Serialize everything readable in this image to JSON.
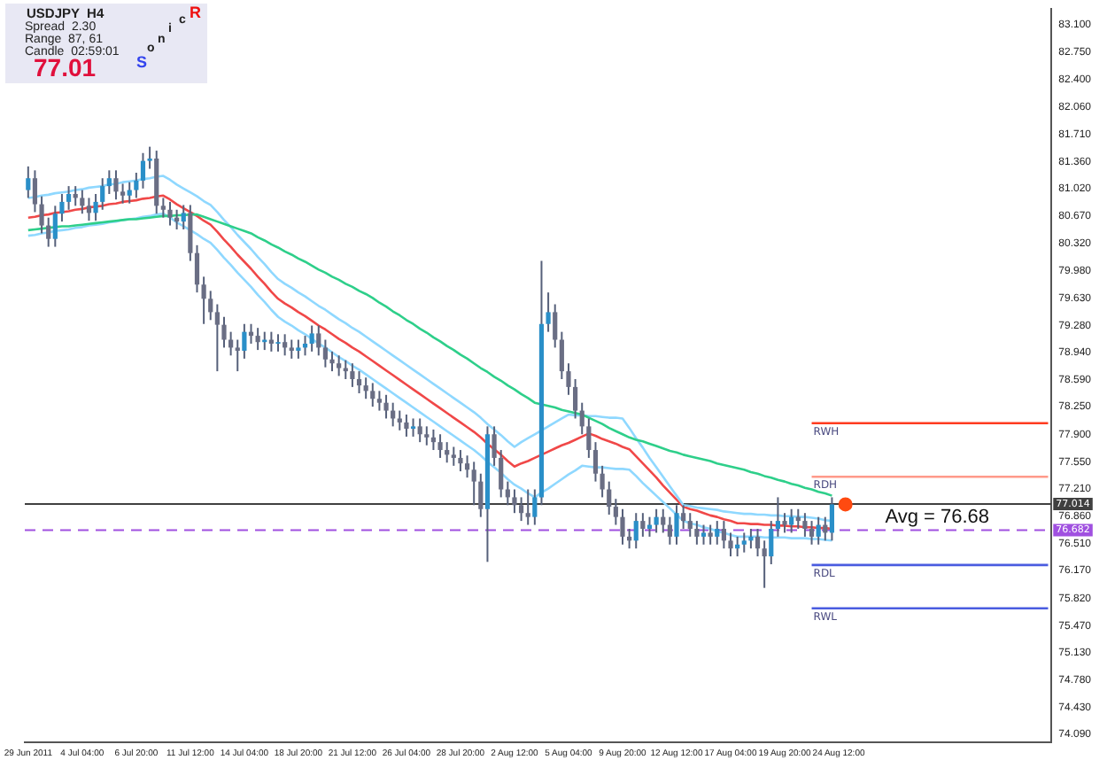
{
  "chart_data": {
    "type": "candlestick",
    "title": "USDJPY  H4",
    "annotations": [
      "Spread  2.30",
      "Range  87, 61",
      "Candle  02:59:01",
      "77.01",
      "Sonic R",
      {
        "text": "Avg = 76.68",
        "y": 76.68
      }
    ],
    "color": "#56607a",
    "colors": [
      "#2a8fc8",
      "#6a6e84",
      "#6a6e84",
      "#6a6e84",
      "#2a8fc8",
      "#2a8fc8",
      "#2a8fc8",
      "#6a6e84",
      "#6a6e84",
      "#6a6e84",
      "#2a8fc8",
      "#2a8fc8",
      "#2a8fc8",
      "#6a6e84",
      "#6a6e84",
      "#2a8fc8",
      "#2a8fc8",
      "#2a8fc8",
      "#2a8fc8",
      "#6a6e84",
      "#6a6e84",
      "#6a6e84",
      "#6a6e84",
      "#2a8fc8",
      "#6a6e84",
      "#6a6e84",
      "#6a6e84",
      "#6a6e84",
      "#6a6e84",
      "#6a6e84",
      "#6a6e84",
      "#6a6e84",
      "#2a8fc8",
      "#6a6e84",
      "#6a6e84",
      "#2a8fc8",
      "#6a6e84",
      "#2a8fc8",
      "#6a6e84",
      "#6a6e84",
      "#2a8fc8",
      "#2a8fc8",
      "#2a8fc8",
      "#6a6e84",
      "#6a6e84",
      "#6a6e84",
      "#6a6e84",
      "#6a6e84",
      "#6a6e84",
      "#6a6e84",
      "#6a6e84",
      "#6a6e84",
      "#6a6e84",
      "#6a6e84",
      "#6a6e84",
      "#6a6e84",
      "#6a6e84",
      "#2a8fc8",
      "#6a6e84",
      "#6a6e84",
      "#6a6e84",
      "#6a6e84",
      "#6a6e84",
      "#6a6e84",
      "#6a6e84",
      "#6a6e84",
      "#6a6e84",
      "#6a6e84",
      "#2a8fc8",
      "#6a6e84",
      "#6a6e84",
      "#6a6e84",
      "#6a6e84",
      "#6a6e84",
      "#6a6e84",
      "#2a8fc8",
      "#2a8fc8",
      "#2a8fc8",
      "#6a6e84",
      "#6a6e84",
      "#6a6e84",
      "#6a6e84",
      "#6a6e84",
      "#6a6e84",
      "#6a6e84",
      "#6a6e84",
      "#6a6e84",
      "#6a6e84",
      "#6a6e84",
      "#6a6e84",
      "#2a8fc8",
      "#6a6e84",
      "#2a8fc8",
      "#2a8fc8",
      "#6a6e84",
      "#6a6e84",
      "#2a8fc8",
      "#6a6e84",
      "#6a6e84",
      "#6a6e84",
      "#2a8fc8",
      "#6a6e84",
      "#2a8fc8",
      "#6a6e84",
      "#6a6e84",
      "#2a8fc8",
      "#2a8fc8",
      "#2a8fc8",
      "#6a6e84",
      "#6a6e84",
      "#2a8fc8",
      "#2a8fc8",
      "#6a6e84",
      "#2a8fc8",
      "#6a6e84",
      "#6a6e84",
      "#6a6e84",
      "#2a8fc8",
      "#6a6e84",
      "#2a8fc8",
      null,
      null,
      null,
      null,
      null,
      null,
      null,
      null,
      null,
      null,
      null,
      null,
      null,
      null,
      null,
      null,
      null,
      null,
      null,
      null,
      null,
      null,
      null,
      null,
      null,
      null,
      null,
      null,
      null,
      null,
      null,
      null
    ],
    "categories": [
      "29 Jun 2011",
      null,
      null,
      null,
      null,
      null,
      null,
      null,
      "4 Jul 04:00",
      null,
      null,
      null,
      null,
      null,
      null,
      null,
      "6 Jul 20:00",
      null,
      null,
      null,
      null,
      null,
      null,
      null,
      "11 Jul 12:00",
      null,
      null,
      null,
      null,
      null,
      null,
      null,
      "14 Jul 04:00",
      null,
      null,
      null,
      null,
      null,
      null,
      null,
      "18 Jul 20:00",
      null,
      null,
      null,
      null,
      null,
      null,
      null,
      "21 Jul 12:00",
      null,
      null,
      null,
      null,
      null,
      null,
      null,
      "26 Jul 04:00",
      null,
      null,
      null,
      null,
      null,
      null,
      null,
      "28 Jul 20:00",
      null,
      null,
      null,
      null,
      null,
      null,
      null,
      "2 Aug 12:00",
      null,
      null,
      null,
      null,
      null,
      null,
      null,
      "5 Aug 04:00",
      null,
      null,
      null,
      null,
      null,
      null,
      null,
      "9 Aug 20:00",
      null,
      null,
      null,
      null,
      null,
      null,
      null,
      "12 Aug 12:00",
      null,
      null,
      null,
      null,
      null,
      null,
      null,
      "17 Aug 04:00",
      null,
      null,
      null,
      null,
      null,
      null,
      null,
      "19 Aug 20:00",
      null,
      null,
      null,
      null,
      null,
      null,
      null,
      "24 Aug 12:00",
      null,
      null,
      null,
      null,
      null,
      null,
      null,
      null,
      null,
      null,
      null,
      null,
      null,
      null,
      null,
      null,
      null,
      null,
      null,
      null,
      null,
      null,
      null,
      null,
      null,
      null,
      null,
      null,
      null,
      null,
      null
    ],
    "ohlc": [
      [
        81.0,
        81.3,
        80.9,
        81.15
      ],
      [
        81.15,
        81.25,
        80.72,
        80.82
      ],
      [
        80.82,
        80.92,
        80.45,
        80.55
      ],
      [
        80.55,
        80.65,
        80.28,
        80.38
      ],
      [
        80.38,
        80.8,
        80.28,
        80.7
      ],
      [
        80.7,
        80.95,
        80.6,
        80.85
      ],
      [
        80.85,
        81.05,
        80.75,
        80.95
      ],
      [
        80.95,
        81.05,
        80.8,
        80.9
      ],
      [
        80.9,
        81.0,
        80.7,
        80.8
      ],
      [
        80.8,
        80.9,
        80.61,
        80.71
      ],
      [
        80.71,
        80.95,
        80.61,
        80.85
      ],
      [
        80.85,
        81.15,
        80.75,
        81.05
      ],
      [
        81.05,
        81.25,
        80.95,
        81.15
      ],
      [
        81.15,
        81.25,
        80.88,
        80.98
      ],
      [
        80.98,
        81.08,
        80.83,
        80.93
      ],
      [
        80.93,
        81.1,
        80.83,
        81.0
      ],
      [
        81.0,
        81.22,
        80.9,
        81.12
      ],
      [
        81.12,
        81.47,
        81.02,
        81.37
      ],
      [
        81.37,
        81.55,
        81.27,
        81.4
      ],
      [
        81.4,
        81.5,
        80.7,
        80.8
      ],
      [
        80.8,
        80.9,
        80.65,
        80.75
      ],
      [
        80.75,
        80.85,
        80.55,
        80.65
      ],
      [
        80.65,
        80.75,
        80.5,
        80.6
      ],
      [
        80.6,
        80.81,
        80.5,
        80.71
      ],
      [
        80.71,
        80.81,
        80.1,
        80.2
      ],
      [
        80.2,
        80.3,
        79.7,
        79.8
      ],
      [
        79.8,
        79.9,
        79.3,
        79.62
      ],
      [
        79.62,
        79.72,
        79.35,
        79.45
      ],
      [
        79.45,
        79.55,
        78.7,
        79.29
      ],
      [
        79.29,
        79.39,
        79.0,
        79.1
      ],
      [
        79.1,
        79.2,
        78.9,
        79.0
      ],
      [
        79.0,
        79.1,
        78.7,
        78.96
      ],
      [
        78.96,
        79.3,
        78.86,
        79.2
      ],
      [
        79.2,
        79.3,
        79.05,
        79.15
      ],
      [
        79.15,
        79.25,
        78.97,
        79.07
      ],
      [
        79.07,
        79.2,
        78.97,
        79.1
      ],
      [
        79.1,
        79.2,
        78.95,
        79.05
      ],
      [
        79.05,
        79.17,
        78.95,
        79.07
      ],
      [
        79.07,
        79.17,
        78.9,
        79.0
      ],
      [
        79.0,
        79.1,
        78.86,
        78.96
      ],
      [
        78.96,
        79.1,
        78.86,
        79.0
      ],
      [
        79.0,
        79.15,
        78.9,
        79.05
      ],
      [
        79.05,
        79.28,
        78.95,
        79.18
      ],
      [
        79.18,
        79.28,
        78.9,
        79.0
      ],
      [
        79.0,
        79.1,
        78.75,
        78.85
      ],
      [
        78.85,
        78.95,
        78.7,
        78.8
      ],
      [
        78.8,
        78.9,
        78.64,
        78.74
      ],
      [
        78.74,
        78.84,
        78.6,
        78.7
      ],
      [
        78.7,
        78.8,
        78.5,
        78.6
      ],
      [
        78.6,
        78.7,
        78.42,
        78.52
      ],
      [
        78.52,
        78.62,
        78.35,
        78.45
      ],
      [
        78.45,
        78.55,
        78.25,
        78.35
      ],
      [
        78.35,
        78.45,
        78.2,
        78.3
      ],
      [
        78.3,
        78.4,
        78.1,
        78.2
      ],
      [
        78.2,
        78.3,
        78.0,
        78.1
      ],
      [
        78.1,
        78.2,
        77.95,
        78.05
      ],
      [
        78.05,
        78.15,
        77.87,
        77.97
      ],
      [
        77.97,
        78.1,
        77.87,
        78.0
      ],
      [
        78.0,
        78.1,
        77.8,
        77.9
      ],
      [
        77.9,
        78.0,
        77.76,
        77.86
      ],
      [
        77.86,
        77.96,
        77.7,
        77.8
      ],
      [
        77.8,
        77.9,
        77.6,
        77.7
      ],
      [
        77.7,
        77.8,
        77.54,
        77.64
      ],
      [
        77.64,
        77.74,
        77.5,
        77.6
      ],
      [
        77.6,
        77.7,
        77.43,
        77.53
      ],
      [
        77.53,
        77.63,
        77.35,
        77.45
      ],
      [
        77.45,
        77.55,
        77.0,
        77.3
      ],
      [
        77.3,
        77.4,
        76.85,
        76.95
      ],
      [
        76.95,
        78.0,
        76.28,
        77.9
      ],
      [
        77.9,
        78.0,
        77.5,
        77.6
      ],
      [
        77.6,
        77.7,
        77.1,
        77.2
      ],
      [
        77.2,
        77.3,
        77.0,
        77.1
      ],
      [
        77.1,
        77.2,
        76.9,
        77.0
      ],
      [
        77.0,
        77.1,
        76.8,
        76.9
      ],
      [
        76.9,
        77.2,
        76.75,
        76.85
      ],
      [
        76.85,
        77.2,
        76.75,
        77.1
      ],
      [
        77.1,
        80.1,
        77.0,
        79.3
      ],
      [
        79.3,
        79.7,
        79.2,
        79.45
      ],
      [
        79.45,
        79.55,
        79.0,
        79.1
      ],
      [
        79.1,
        79.2,
        78.6,
        78.7
      ],
      [
        78.7,
        78.8,
        78.4,
        78.5
      ],
      [
        78.5,
        78.6,
        78.1,
        78.2
      ],
      [
        78.2,
        78.3,
        77.9,
        78.0
      ],
      [
        78.0,
        78.1,
        77.6,
        77.7
      ],
      [
        77.7,
        77.8,
        77.3,
        77.4
      ],
      [
        77.4,
        77.5,
        77.1,
        77.2
      ],
      [
        77.2,
        77.3,
        76.88,
        76.98
      ],
      [
        76.98,
        77.08,
        76.75,
        76.85
      ],
      [
        76.85,
        76.95,
        76.5,
        76.6
      ],
      [
        76.6,
        76.7,
        76.45,
        76.55
      ],
      [
        76.55,
        76.9,
        76.45,
        76.8
      ],
      [
        76.8,
        76.9,
        76.6,
        76.7
      ],
      [
        76.7,
        76.85,
        76.6,
        76.75
      ],
      [
        76.75,
        76.95,
        76.65,
        76.85
      ],
      [
        76.85,
        76.95,
        76.65,
        76.75
      ],
      [
        76.75,
        76.85,
        76.5,
        76.6
      ],
      [
        76.6,
        77.0,
        76.5,
        76.9
      ],
      [
        76.9,
        77.0,
        76.7,
        76.8
      ],
      [
        76.8,
        76.9,
        76.6,
        76.7
      ],
      [
        76.7,
        76.8,
        76.5,
        76.6
      ],
      [
        76.6,
        76.75,
        76.5,
        76.65
      ],
      [
        76.65,
        76.75,
        76.5,
        76.6
      ],
      [
        76.6,
        76.8,
        76.5,
        76.7
      ],
      [
        76.7,
        76.8,
        76.45,
        76.55
      ],
      [
        76.55,
        76.65,
        76.35,
        76.45
      ],
      [
        76.45,
        76.6,
        76.35,
        76.5
      ],
      [
        76.5,
        76.65,
        76.4,
        76.55
      ],
      [
        76.55,
        76.7,
        76.45,
        76.6
      ],
      [
        76.6,
        76.7,
        76.35,
        76.45
      ],
      [
        76.45,
        76.55,
        75.95,
        76.35
      ],
      [
        76.35,
        76.8,
        76.25,
        76.7
      ],
      [
        76.7,
        77.1,
        76.6,
        76.8
      ],
      [
        76.8,
        76.9,
        76.65,
        76.75
      ],
      [
        76.75,
        76.95,
        76.65,
        76.85
      ],
      [
        76.85,
        76.95,
        76.7,
        76.8
      ],
      [
        76.8,
        76.9,
        76.6,
        76.7
      ],
      [
        76.7,
        76.8,
        76.5,
        76.6
      ],
      [
        76.6,
        76.85,
        76.5,
        76.75
      ],
      [
        76.75,
        76.85,
        76.55,
        76.65
      ],
      [
        76.65,
        77.1,
        76.55,
        77.01
      ],
      null,
      null,
      null,
      null,
      null,
      null,
      null,
      null,
      null,
      null,
      null,
      null,
      null,
      null,
      null,
      null,
      null,
      null,
      null,
      null,
      null,
      null,
      null,
      null,
      null,
      null,
      null,
      null,
      null,
      null,
      null,
      null
    ],
    "series": [
      {
        "type": "line",
        "color": "#2ecf8a",
        "values": [
          80.49,
          80.5,
          80.51,
          80.52,
          80.53,
          80.54,
          80.54,
          80.55,
          80.56,
          80.57,
          80.58,
          80.59,
          80.6,
          80.61,
          80.62,
          80.63,
          80.63,
          80.64,
          80.65,
          80.66,
          80.67,
          80.67,
          80.68,
          80.68,
          80.69,
          80.69,
          80.66,
          80.63,
          80.6,
          80.57,
          80.54,
          80.51,
          80.48,
          80.45,
          80.4,
          80.36,
          80.31,
          80.27,
          80.22,
          80.18,
          80.13,
          80.09,
          80.04,
          79.99,
          79.95,
          79.9,
          79.86,
          79.81,
          79.77,
          79.72,
          79.68,
          79.63,
          79.57,
          79.52,
          79.46,
          79.41,
          79.35,
          79.3,
          79.24,
          79.19,
          79.13,
          79.08,
          79.02,
          78.97,
          78.91,
          78.86,
          78.8,
          78.74,
          78.69,
          78.63,
          78.58,
          78.52,
          78.47,
          78.41,
          78.36,
          78.3,
          78.28,
          78.26,
          78.24,
          78.21,
          78.19,
          78.17,
          78.15,
          78.11,
          78.07,
          78.03,
          77.98,
          77.94,
          77.9,
          77.86,
          77.83,
          77.81,
          77.78,
          77.75,
          77.72,
          77.69,
          77.67,
          77.64,
          77.62,
          77.6,
          77.58,
          77.56,
          77.53,
          77.51,
          77.49,
          77.47,
          77.45,
          77.42,
          77.4,
          77.37,
          77.35,
          77.32,
          77.3,
          77.27,
          77.25,
          77.22,
          77.2,
          77.17,
          77.15,
          77.12,
          null,
          null,
          null,
          null,
          null,
          null,
          null,
          null,
          null,
          null,
          null,
          null,
          null,
          null,
          null,
          null,
          null,
          null,
          null,
          null,
          null,
          null,
          null,
          null,
          null,
          null,
          null,
          null,
          null,
          null,
          null,
          null
        ]
      },
      {
        "type": "line",
        "color": "#8fd8ff",
        "values": [
          80.9,
          80.91,
          80.93,
          80.94,
          80.96,
          80.97,
          80.98,
          81.0,
          81.01,
          81.03,
          81.04,
          81.05,
          81.07,
          81.08,
          81.1,
          81.11,
          81.12,
          81.14,
          81.15,
          81.17,
          81.18,
          81.13,
          81.07,
          81.02,
          80.97,
          80.92,
          80.86,
          80.81,
          80.72,
          80.62,
          80.53,
          80.43,
          80.34,
          80.25,
          80.15,
          80.06,
          79.96,
          79.87,
          79.81,
          79.76,
          79.7,
          79.65,
          79.59,
          79.53,
          79.48,
          79.42,
          79.36,
          79.31,
          79.25,
          79.2,
          79.14,
          79.08,
          79.02,
          78.96,
          78.9,
          78.84,
          78.78,
          78.72,
          78.66,
          78.6,
          78.54,
          78.48,
          78.42,
          78.36,
          78.3,
          78.24,
          78.18,
          78.11,
          78.03,
          77.96,
          77.89,
          77.81,
          77.74,
          77.8,
          77.85,
          77.9,
          77.95,
          78.0,
          78.05,
          78.1,
          78.15,
          78.14,
          78.14,
          78.13,
          78.13,
          78.12,
          78.11,
          78.11,
          78.1,
          77.98,
          77.85,
          77.73,
          77.6,
          77.48,
          77.36,
          77.24,
          77.12,
          77.0,
          76.99,
          76.97,
          76.96,
          76.95,
          76.94,
          76.92,
          76.91,
          76.9,
          76.89,
          76.89,
          76.88,
          76.88,
          76.87,
          76.87,
          76.86,
          76.86,
          76.85,
          76.85,
          76.84,
          76.83,
          76.81,
          76.8,
          null,
          null,
          null,
          null,
          null,
          null,
          null,
          null,
          null,
          null,
          null,
          null,
          null,
          null,
          null,
          null,
          null,
          null,
          null,
          null,
          null,
          null,
          null,
          null,
          null,
          null,
          null,
          null,
          null,
          null,
          null,
          null
        ]
      },
      {
        "type": "line",
        "color": "#8fd8ff",
        "values": [
          80.42,
          80.43,
          80.45,
          80.46,
          80.48,
          80.49,
          80.5,
          80.52,
          80.53,
          80.55,
          80.56,
          80.57,
          80.59,
          80.6,
          80.62,
          80.63,
          80.64,
          80.66,
          80.67,
          80.69,
          80.7,
          80.65,
          80.59,
          80.54,
          80.49,
          80.44,
          80.38,
          80.33,
          80.24,
          80.14,
          80.05,
          79.95,
          79.86,
          79.77,
          79.67,
          79.58,
          79.48,
          79.39,
          79.33,
          79.28,
          79.22,
          79.17,
          79.11,
          79.05,
          79.0,
          78.94,
          78.88,
          78.83,
          78.77,
          78.72,
          78.66,
          78.6,
          78.54,
          78.48,
          78.42,
          78.36,
          78.3,
          78.24,
          78.18,
          78.12,
          78.06,
          78.0,
          77.94,
          77.88,
          77.82,
          77.76,
          77.7,
          77.63,
          77.55,
          77.48,
          77.41,
          77.33,
          77.26,
          77.21,
          77.15,
          77.1,
          77.16,
          77.21,
          77.27,
          77.33,
          77.39,
          77.44,
          77.5,
          77.49,
          77.48,
          77.48,
          77.47,
          77.46,
          77.46,
          77.45,
          77.37,
          77.28,
          77.2,
          77.12,
          77.04,
          76.96,
          76.88,
          76.8,
          76.77,
          76.75,
          76.72,
          76.7,
          76.67,
          76.65,
          76.62,
          76.6,
          76.6,
          76.6,
          76.6,
          76.59,
          76.59,
          76.59,
          76.59,
          76.58,
          76.58,
          76.58,
          76.57,
          76.57,
          76.56,
          76.55,
          null,
          null,
          null,
          null,
          null,
          null,
          null,
          null,
          null,
          null,
          null,
          null,
          null,
          null,
          null,
          null,
          null,
          null,
          null,
          null,
          null,
          null,
          null,
          null,
          null,
          null,
          null,
          null,
          null,
          null,
          null,
          null
        ]
      },
      {
        "type": "line",
        "color": "#f04848",
        "values": [
          80.65,
          80.66,
          80.68,
          80.69,
          80.71,
          80.72,
          80.73,
          80.75,
          80.76,
          80.78,
          80.79,
          80.8,
          80.82,
          80.83,
          80.85,
          80.86,
          80.87,
          80.89,
          80.9,
          80.92,
          80.93,
          80.88,
          80.82,
          80.77,
          80.72,
          80.67,
          80.61,
          80.56,
          80.47,
          80.37,
          80.28,
          80.18,
          80.09,
          80.0,
          79.9,
          79.81,
          79.71,
          79.62,
          79.56,
          79.51,
          79.45,
          79.4,
          79.34,
          79.28,
          79.23,
          79.17,
          79.11,
          79.06,
          79.0,
          78.95,
          78.89,
          78.83,
          78.77,
          78.71,
          78.65,
          78.59,
          78.53,
          78.47,
          78.41,
          78.35,
          78.29,
          78.23,
          78.17,
          78.11,
          78.05,
          77.99,
          77.93,
          77.86,
          77.78,
          77.71,
          77.64,
          77.56,
          77.49,
          77.53,
          77.56,
          77.6,
          77.64,
          77.68,
          77.72,
          77.76,
          77.79,
          77.83,
          77.87,
          77.91,
          77.88,
          77.84,
          77.81,
          77.78,
          77.74,
          77.71,
          77.62,
          77.53,
          77.44,
          77.35,
          77.25,
          77.16,
          77.07,
          76.98,
          76.95,
          76.93,
          76.9,
          76.87,
          76.85,
          76.82,
          76.8,
          76.77,
          76.77,
          76.76,
          76.76,
          76.75,
          76.75,
          76.74,
          76.74,
          76.73,
          76.73,
          76.72,
          76.72,
          76.71,
          76.71,
          76.7,
          null,
          null,
          null,
          null,
          null,
          null,
          null,
          null,
          null,
          null,
          null,
          null,
          null,
          null,
          null,
          null,
          null,
          null,
          null,
          null,
          null,
          null,
          null,
          null,
          null,
          null,
          null,
          null,
          null,
          null,
          null,
          null
        ]
      },
      {
        "type": "line",
        "name": "RWH",
        "color": "#ff3b1f",
        "values": [
          null,
          null,
          null,
          null,
          null,
          null,
          null,
          null,
          null,
          null,
          null,
          null,
          null,
          null,
          null,
          null,
          null,
          null,
          null,
          null,
          null,
          null,
          null,
          null,
          null,
          null,
          null,
          null,
          null,
          null,
          null,
          null,
          null,
          null,
          null,
          null,
          null,
          null,
          null,
          null,
          null,
          null,
          null,
          null,
          null,
          null,
          null,
          null,
          null,
          null,
          null,
          null,
          null,
          null,
          null,
          null,
          null,
          null,
          null,
          null,
          null,
          null,
          null,
          null,
          null,
          null,
          null,
          null,
          null,
          null,
          null,
          null,
          null,
          null,
          null,
          null,
          null,
          null,
          null,
          null,
          null,
          null,
          null,
          null,
          null,
          null,
          null,
          null,
          null,
          null,
          null,
          null,
          null,
          null,
          null,
          null,
          null,
          null,
          null,
          null,
          null,
          null,
          null,
          null,
          null,
          null,
          null,
          null,
          null,
          null,
          null,
          null,
          null,
          null,
          null,
          null,
          78.04,
          78.04,
          78.04,
          78.04,
          78.04,
          78.04,
          78.04,
          78.04,
          78.04,
          78.04,
          78.04,
          78.04,
          78.04,
          78.04,
          78.04,
          78.04,
          78.04,
          78.04,
          78.04,
          78.04,
          78.04,
          78.04,
          78.04,
          78.04,
          78.04,
          78.04,
          78.04,
          78.04,
          78.04,
          78.04,
          78.04,
          78.04,
          78.04,
          78.04,
          78.04,
          78.04
        ]
      },
      {
        "type": "line",
        "name": "RDH",
        "color": "#ff9a8a",
        "values": [
          null,
          null,
          null,
          null,
          null,
          null,
          null,
          null,
          null,
          null,
          null,
          null,
          null,
          null,
          null,
          null,
          null,
          null,
          null,
          null,
          null,
          null,
          null,
          null,
          null,
          null,
          null,
          null,
          null,
          null,
          null,
          null,
          null,
          null,
          null,
          null,
          null,
          null,
          null,
          null,
          null,
          null,
          null,
          null,
          null,
          null,
          null,
          null,
          null,
          null,
          null,
          null,
          null,
          null,
          null,
          null,
          null,
          null,
          null,
          null,
          null,
          null,
          null,
          null,
          null,
          null,
          null,
          null,
          null,
          null,
          null,
          null,
          null,
          null,
          null,
          null,
          null,
          null,
          null,
          null,
          null,
          null,
          null,
          null,
          null,
          null,
          null,
          null,
          null,
          null,
          null,
          null,
          null,
          null,
          null,
          null,
          null,
          null,
          null,
          null,
          null,
          null,
          null,
          null,
          null,
          null,
          null,
          null,
          null,
          null,
          null,
          null,
          null,
          null,
          null,
          null,
          77.36,
          77.36,
          77.36,
          77.36,
          77.36,
          77.36,
          77.36,
          77.36,
          77.36,
          77.36,
          77.36,
          77.36,
          77.36,
          77.36,
          77.36,
          77.36,
          77.36,
          77.36,
          77.36,
          77.36,
          77.36,
          77.36,
          77.36,
          77.36,
          77.36,
          77.36,
          77.36,
          77.36,
          77.36,
          77.36,
          77.36,
          77.36,
          77.36,
          77.36,
          77.36,
          77.36
        ]
      },
      {
        "type": "line",
        "name": "RDL",
        "color": "#4a5ce0",
        "values": [
          null,
          null,
          null,
          null,
          null,
          null,
          null,
          null,
          null,
          null,
          null,
          null,
          null,
          null,
          null,
          null,
          null,
          null,
          null,
          null,
          null,
          null,
          null,
          null,
          null,
          null,
          null,
          null,
          null,
          null,
          null,
          null,
          null,
          null,
          null,
          null,
          null,
          null,
          null,
          null,
          null,
          null,
          null,
          null,
          null,
          null,
          null,
          null,
          null,
          null,
          null,
          null,
          null,
          null,
          null,
          null,
          null,
          null,
          null,
          null,
          null,
          null,
          null,
          null,
          null,
          null,
          null,
          null,
          null,
          null,
          null,
          null,
          null,
          null,
          null,
          null,
          null,
          null,
          null,
          null,
          null,
          null,
          null,
          null,
          null,
          null,
          null,
          null,
          null,
          null,
          null,
          null,
          null,
          null,
          null,
          null,
          null,
          null,
          null,
          null,
          null,
          null,
          null,
          null,
          null,
          null,
          null,
          null,
          null,
          null,
          null,
          null,
          null,
          null,
          null,
          null,
          76.24,
          76.24,
          76.24,
          76.24,
          76.24,
          76.24,
          76.24,
          76.24,
          76.24,
          76.24,
          76.24,
          76.24,
          76.24,
          76.24,
          76.24,
          76.24,
          76.24,
          76.24,
          76.24,
          76.24,
          76.24,
          76.24,
          76.24,
          76.24,
          76.24,
          76.24,
          76.24,
          76.24,
          76.24,
          76.24,
          76.24,
          76.24,
          76.24,
          76.24,
          76.24,
          76.24
        ]
      },
      {
        "type": "line",
        "name": "RWL",
        "color": "#4a5ce0",
        "values": [
          null,
          null,
          null,
          null,
          null,
          null,
          null,
          null,
          null,
          null,
          null,
          null,
          null,
          null,
          null,
          null,
          null,
          null,
          null,
          null,
          null,
          null,
          null,
          null,
          null,
          null,
          null,
          null,
          null,
          null,
          null,
          null,
          null,
          null,
          null,
          null,
          null,
          null,
          null,
          null,
          null,
          null,
          null,
          null,
          null,
          null,
          null,
          null,
          null,
          null,
          null,
          null,
          null,
          null,
          null,
          null,
          null,
          null,
          null,
          null,
          null,
          null,
          null,
          null,
          null,
          null,
          null,
          null,
          null,
          null,
          null,
          null,
          null,
          null,
          null,
          null,
          null,
          null,
          null,
          null,
          null,
          null,
          null,
          null,
          null,
          null,
          null,
          null,
          null,
          null,
          null,
          null,
          null,
          null,
          null,
          null,
          null,
          null,
          null,
          null,
          null,
          null,
          null,
          null,
          null,
          null,
          null,
          null,
          null,
          null,
          null,
          null,
          null,
          null,
          null,
          null,
          75.69,
          75.69,
          75.69,
          75.69,
          75.69,
          75.69,
          75.69,
          75.69,
          75.69,
          75.69,
          75.69,
          75.69,
          75.69,
          75.69,
          75.69,
          75.69,
          75.69,
          75.69,
          75.69,
          75.69,
          75.69,
          75.69,
          75.69,
          75.69,
          75.69,
          75.69,
          75.69,
          75.69,
          75.69,
          75.69,
          75.69,
          75.69,
          75.69,
          75.69,
          75.69,
          75.69
        ]
      },
      {
        "type": "scatter",
        "color": "#ff4a10",
        "values": [
          null,
          null,
          null,
          null,
          null,
          null,
          null,
          null,
          null,
          null,
          null,
          null,
          null,
          null,
          null,
          null,
          null,
          null,
          null,
          null,
          null,
          null,
          null,
          null,
          null,
          null,
          null,
          null,
          null,
          null,
          null,
          null,
          null,
          null,
          null,
          null,
          null,
          null,
          null,
          null,
          null,
          null,
          null,
          null,
          null,
          null,
          null,
          null,
          null,
          null,
          null,
          null,
          null,
          null,
          null,
          null,
          null,
          null,
          null,
          null,
          null,
          null,
          null,
          null,
          null,
          null,
          null,
          null,
          null,
          null,
          null,
          null,
          null,
          null,
          null,
          null,
          null,
          null,
          null,
          null,
          null,
          null,
          null,
          null,
          null,
          null,
          null,
          null,
          null,
          null,
          null,
          null,
          null,
          null,
          null,
          null,
          null,
          null,
          null,
          null,
          null,
          null,
          null,
          null,
          null,
          null,
          null,
          null,
          null,
          null,
          null,
          null,
          null,
          null,
          null,
          null,
          null,
          null,
          null,
          null,
          null,
          77.01,
          null,
          null,
          null,
          null,
          null,
          null,
          null,
          null,
          null,
          null,
          null,
          null,
          null,
          null,
          null,
          null,
          null,
          null,
          null,
          null,
          null,
          null,
          null,
          null,
          null,
          null,
          null,
          null,
          null,
          null
        ]
      }
    ],
    "ref_lines": [
      {
        "axis": "y",
        "value": 77.014,
        "label": "77.014",
        "color": "#404040",
        "line_style": "solid"
      },
      {
        "axis": "y",
        "value": 76.682,
        "label": "76.682",
        "color": "#a050e0",
        "line_style": "dashed"
      }
    ],
    "ylim": [
      73.99,
      83.3
    ],
    "yticks": [
      {
        "value": 74.09,
        "label": "74.090"
      },
      {
        "value": 74.43,
        "label": "74.430"
      },
      {
        "value": 74.78,
        "label": "74.780"
      },
      {
        "value": 75.13,
        "label": "75.130"
      },
      {
        "value": 75.47,
        "label": "75.470"
      },
      {
        "value": 75.82,
        "label": "75.820"
      },
      {
        "value": 76.17,
        "label": "76.170"
      },
      {
        "value": 76.51,
        "label": "76.510"
      },
      {
        "value": 76.86,
        "label": "76.860"
      },
      {
        "value": 77.21,
        "label": "77.210"
      },
      {
        "value": 77.55,
        "label": "77.550"
      },
      {
        "value": 77.9,
        "label": "77.900"
      },
      {
        "value": 78.25,
        "label": "78.250"
      },
      {
        "value": 78.59,
        "label": "78.590"
      },
      {
        "value": 78.94,
        "label": "78.940"
      },
      {
        "value": 79.28,
        "label": "79.280"
      },
      {
        "value": 79.63,
        "label": "79.630"
      },
      {
        "value": 79.98,
        "label": "79.980"
      },
      {
        "value": 80.32,
        "label": "80.320"
      },
      {
        "value": 80.67,
        "label": "80.670"
      },
      {
        "value": 81.02,
        "label": "81.020"
      },
      {
        "value": 81.36,
        "label": "81.360"
      },
      {
        "value": 81.71,
        "label": "81.710"
      },
      {
        "value": 82.06,
        "label": "82.060"
      },
      {
        "value": 82.4,
        "label": "82.400"
      },
      {
        "value": 82.75,
        "label": "82.750"
      },
      {
        "value": 83.1,
        "label": "83.100"
      }
    ]
  }
}
